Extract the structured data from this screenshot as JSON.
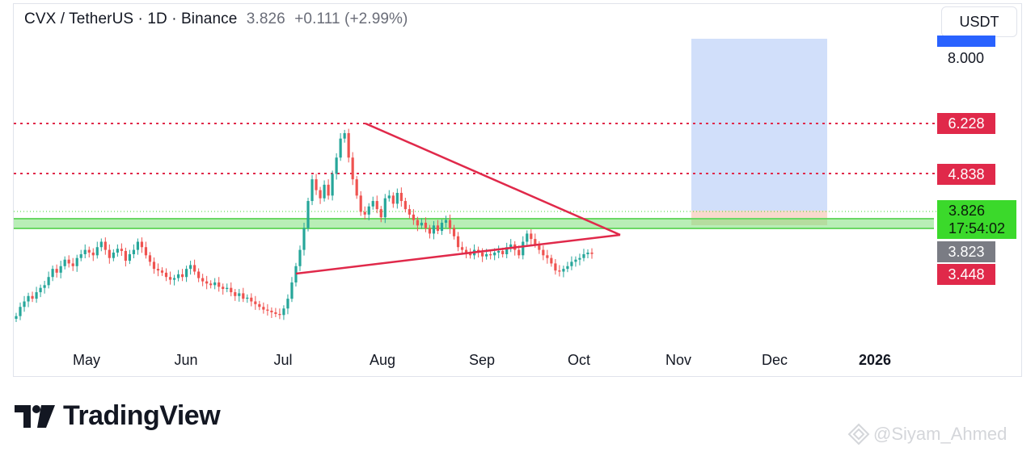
{
  "header": {
    "symbol": "CVX / TetherUS · 1D · Binance",
    "price": "3.826",
    "change": "+0.111 (+2.99%)"
  },
  "currency_button": "USDT",
  "price_labels": {
    "axis_8": "8.000",
    "r1": "6.228",
    "r2": "4.838",
    "current": "3.826",
    "countdown": "17:54:02",
    "mid": "3.823",
    "low": "3.448"
  },
  "colors": {
    "bull": "#26a69a",
    "bear": "#ef5350",
    "resistance": "#e0294a",
    "support_zone": "#7ee07a",
    "target_zone": "#c9d9f9",
    "stop_zone": "#f8d5c8"
  },
  "chart_data": {
    "type": "candlestick",
    "x_labels": [
      "May",
      "Jun",
      "Jul",
      "Aug",
      "Sep",
      "Oct",
      "Nov",
      "Dec",
      "2026"
    ],
    "horizontal_levels": [
      6.228,
      4.838
    ],
    "support_zone": [
      3.62,
      3.77
    ],
    "triangle": {
      "upper": [
        [
          "Jul 28",
          6.23
        ],
        [
          "Oct 17",
          3.56
        ]
      ],
      "lower": [
        [
          "Jul 1",
          2.68
        ],
        [
          "Oct 17",
          3.56
        ]
      ]
    },
    "position_box": {
      "entry": 3.83,
      "target": 8.25,
      "stop": 3.45
    },
    "close_series": [
      2.68,
      2.85,
      2.95,
      3.05,
      3.0,
      3.12,
      3.2,
      3.25,
      3.4,
      3.55,
      3.48,
      3.6,
      3.72,
      3.65,
      3.6,
      3.75,
      3.82,
      3.9,
      3.85,
      3.8,
      3.95,
      4.05,
      3.9,
      3.75,
      3.85,
      3.92,
      3.88,
      3.7,
      3.82,
      3.9,
      4.05,
      3.95,
      3.8,
      3.68,
      3.55,
      3.52,
      3.48,
      3.4,
      3.35,
      3.38,
      3.45,
      3.4,
      3.55,
      3.62,
      3.5,
      3.38,
      3.32,
      3.28,
      3.25,
      3.3,
      3.22,
      3.18,
      3.2,
      3.12,
      3.05,
      3.1,
      3.0,
      3.02,
      2.95,
      2.9,
      2.85,
      2.8,
      2.78,
      2.75,
      2.72,
      2.7,
      2.82,
      3.0,
      3.3,
      3.6,
      3.9,
      4.3,
      4.8,
      5.2,
      5.0,
      4.85,
      5.1,
      4.9,
      5.3,
      5.6,
      5.95,
      6.05,
      5.6,
      5.2,
      4.9,
      4.6,
      4.55,
      4.7,
      4.8,
      4.65,
      4.5,
      4.85,
      4.9,
      4.75,
      4.95,
      4.8,
      4.65,
      4.55,
      4.45,
      4.35,
      4.4,
      4.3,
      4.2,
      4.35,
      4.25,
      4.4,
      4.45,
      4.3,
      4.15,
      3.95,
      3.9,
      3.85,
      3.8,
      3.9,
      3.85,
      3.78,
      3.82,
      3.8,
      3.85,
      3.88,
      3.82,
      3.95,
      4.0,
      3.9,
      3.8,
      4.05,
      4.2,
      4.1,
      4.0,
      3.9,
      3.8,
      3.75,
      3.65,
      3.52,
      3.5,
      3.55,
      3.6,
      3.68,
      3.72,
      3.75,
      3.82,
      3.85,
      3.826
    ]
  }
}
